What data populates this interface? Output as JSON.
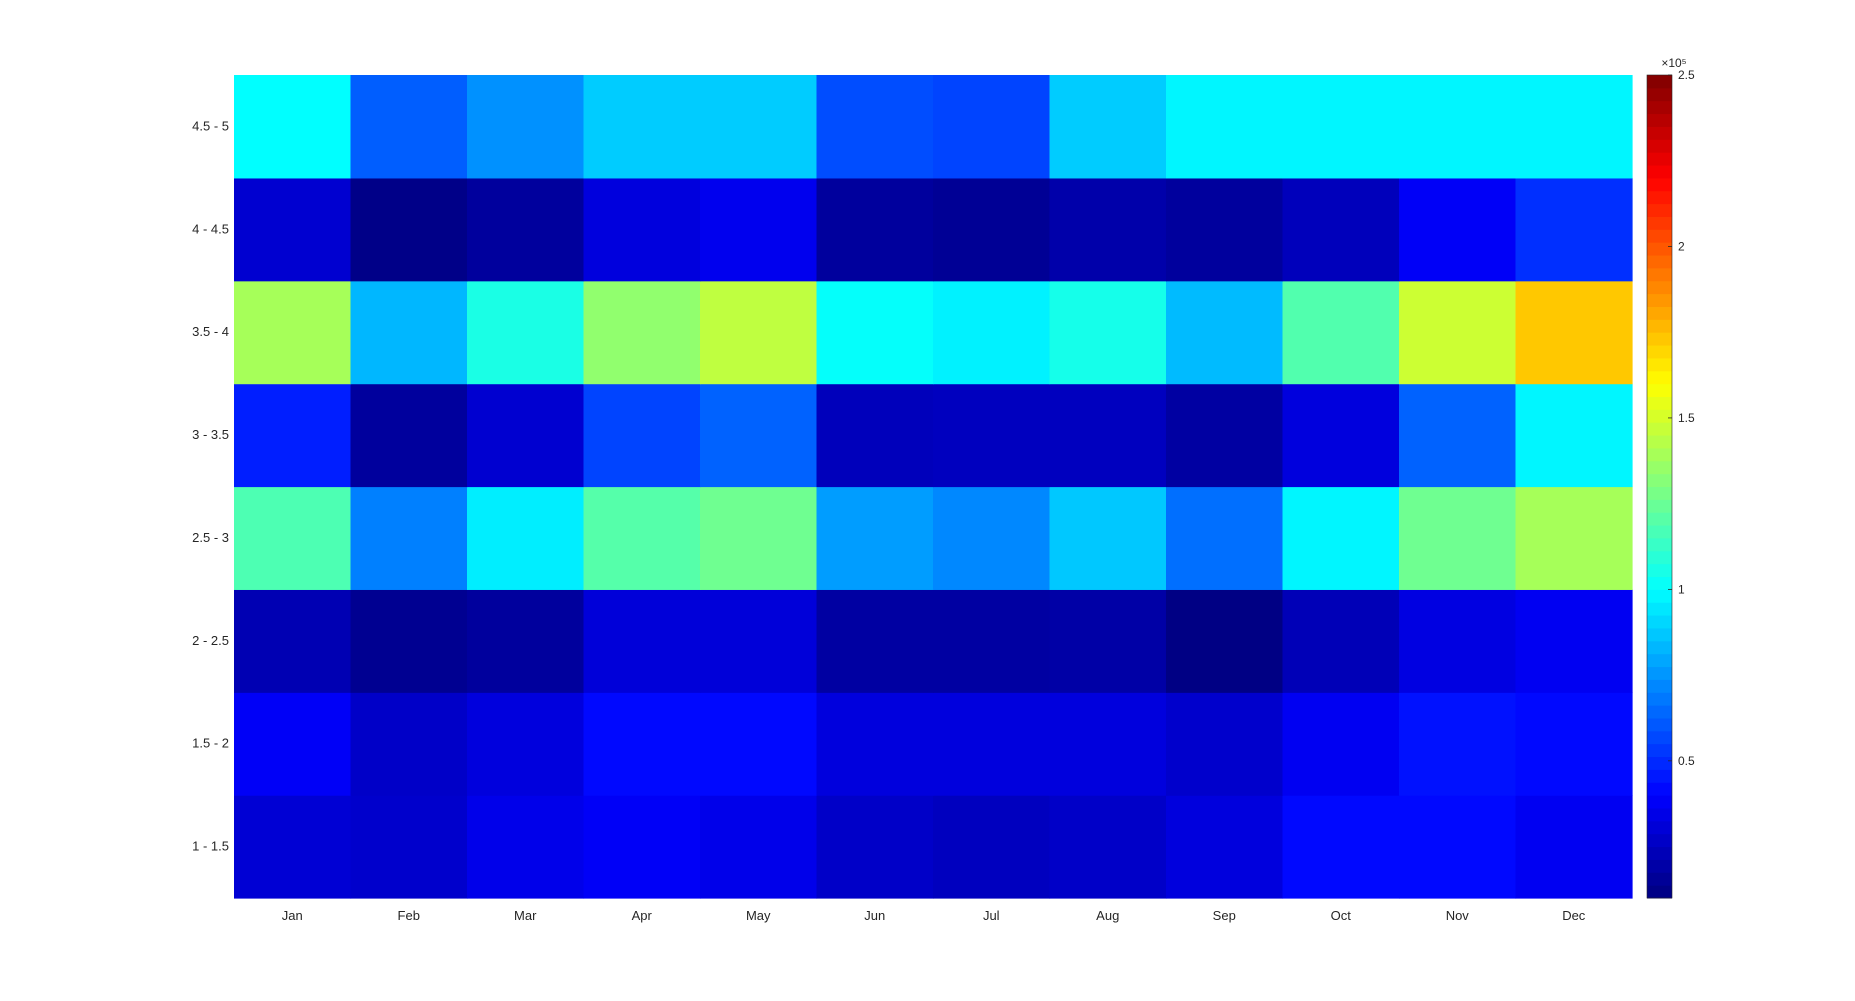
{
  "chart_data": {
    "type": "heatmap",
    "title": "",
    "xlabel": "",
    "ylabel": "",
    "x_categories": [
      "Jan",
      "Feb",
      "Mar",
      "Apr",
      "May",
      "Jun",
      "Jul",
      "Aug",
      "Sep",
      "Oct",
      "Nov",
      "Dec"
    ],
    "y_categories": [
      "1 - 1.5",
      "1.5 - 2",
      "2 - 2.5",
      "2.5 - 3",
      "3 - 3.5",
      "3.5 - 4",
      "4 - 4.5",
      "4.5 - 5"
    ],
    "values": [
      [
        30000,
        28000,
        35000,
        38000,
        35000,
        27000,
        25000,
        27000,
        32000,
        42000,
        42000,
        37000
      ],
      [
        38000,
        27000,
        32000,
        42000,
        42000,
        32000,
        32000,
        32000,
        28000,
        37000,
        44000,
        42000
      ],
      [
        22000,
        14000,
        17000,
        31000,
        31000,
        18000,
        18000,
        19000,
        11000,
        23000,
        33000,
        37000
      ],
      [
        118000,
        70000,
        96000,
        120000,
        126000,
        77000,
        72000,
        87000,
        66000,
        98000,
        126000,
        139000
      ],
      [
        47000,
        17000,
        29000,
        56000,
        63000,
        24000,
        25000,
        25000,
        18000,
        32000,
        63000,
        98000
      ],
      [
        139000,
        83000,
        106000,
        134000,
        145000,
        101000,
        97000,
        105000,
        84000,
        119000,
        148000,
        173000
      ],
      [
        29000,
        12000,
        17000,
        32000,
        36000,
        17000,
        15000,
        20000,
        17000,
        24000,
        38000,
        51000
      ],
      [
        100000,
        62000,
        74000,
        88000,
        88000,
        58000,
        56000,
        88000,
        98000,
        98000,
        98000,
        98000
      ]
    ],
    "colorbar": {
      "min": 10000,
      "max": 250000,
      "ticks": [
        50000,
        100000,
        150000,
        200000,
        250000
      ],
      "tick_labels": [
        "0.5",
        "1",
        "1.5",
        "2",
        "2.5"
      ],
      "exponent_label": "×10⁵",
      "colormap": "jet"
    },
    "grid": false,
    "legend": "none"
  }
}
